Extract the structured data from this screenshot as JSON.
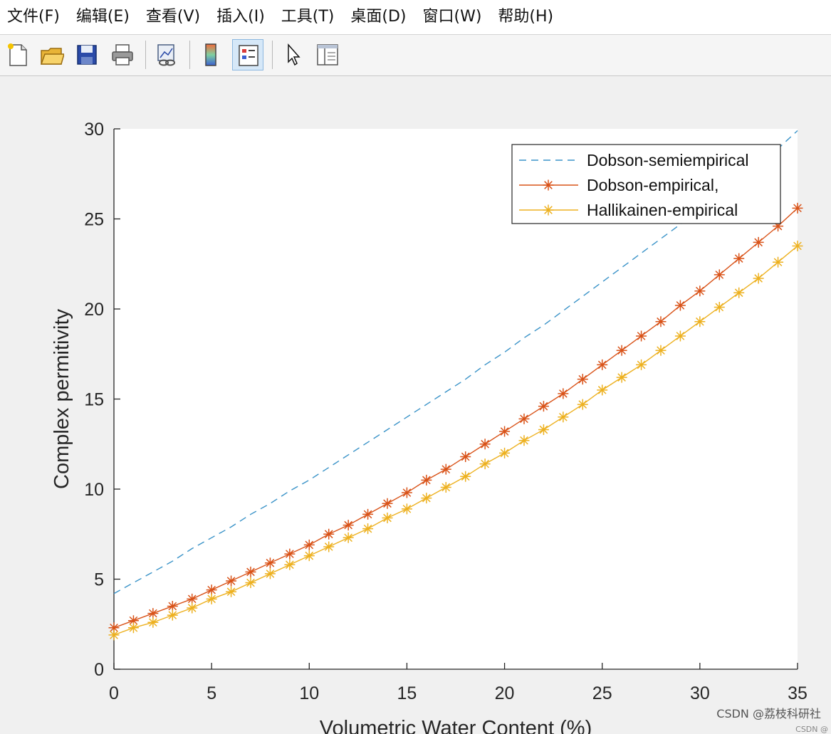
{
  "menu": [
    "文件(F)",
    "编辑(E)",
    "查看(V)",
    "插入(I)",
    "工具(T)",
    "桌面(D)",
    "窗口(W)",
    "帮助(H)"
  ],
  "toolbar": [
    {
      "name": "new-file-icon",
      "active": false
    },
    {
      "name": "open-folder-icon",
      "active": false
    },
    {
      "name": "save-icon",
      "active": false
    },
    {
      "name": "print-icon",
      "active": false
    },
    {
      "name": "link-plot-icon",
      "active": false
    },
    {
      "name": "colorbar-icon",
      "active": false
    },
    {
      "name": "legend-icon",
      "active": true
    },
    {
      "name": "edit-plot-arrow-icon",
      "active": false
    },
    {
      "name": "property-inspector-icon",
      "active": false
    }
  ],
  "watermark": "CSDN @荔枝科研社",
  "watermark_small": "CSDN @",
  "chart_data": {
    "type": "line",
    "xlabel": "Volumetric Water Content (%)",
    "ylabel": "Complex permitivity",
    "xlim": [
      0,
      35
    ],
    "ylim": [
      0,
      30
    ],
    "xticks": [
      0,
      5,
      10,
      15,
      20,
      25,
      30,
      35
    ],
    "yticks": [
      0,
      5,
      10,
      15,
      20,
      25,
      30
    ],
    "grid": false,
    "legend_position": "top-right",
    "x": [
      0,
      1,
      2,
      3,
      4,
      5,
      6,
      7,
      8,
      9,
      10,
      11,
      12,
      13,
      14,
      15,
      16,
      17,
      18,
      19,
      20,
      21,
      22,
      23,
      24,
      25,
      26,
      27,
      28,
      29,
      30,
      31,
      32,
      33,
      34,
      35
    ],
    "series": [
      {
        "name": "Dobson-semiempirical",
        "style": "dashed",
        "marker": "none",
        "color": "#3a93c8",
        "values": [
          4.2,
          4.8,
          5.4,
          6.0,
          6.7,
          7.3,
          7.9,
          8.6,
          9.2,
          9.9,
          10.5,
          11.2,
          11.9,
          12.6,
          13.3,
          14.0,
          14.7,
          15.4,
          16.1,
          16.9,
          17.6,
          18.4,
          19.1,
          19.9,
          20.7,
          21.5,
          22.3,
          23.1,
          23.9,
          24.7,
          25.5,
          26.3,
          27.2,
          28.0,
          28.9,
          29.9
        ]
      },
      {
        "name": "Dobson-empirical,",
        "style": "solid",
        "marker": "asterisk",
        "color": "#d95319",
        "values": [
          2.3,
          2.7,
          3.1,
          3.5,
          3.9,
          4.4,
          4.9,
          5.4,
          5.9,
          6.4,
          6.9,
          7.5,
          8.0,
          8.6,
          9.2,
          9.8,
          10.5,
          11.1,
          11.8,
          12.5,
          13.2,
          13.9,
          14.6,
          15.3,
          16.1,
          16.9,
          17.7,
          18.5,
          19.3,
          20.2,
          21.0,
          21.9,
          22.8,
          23.7,
          24.6,
          25.6
        ]
      },
      {
        "name": "Hallikainen-empirical",
        "style": "solid",
        "marker": "asterisk",
        "color": "#edb120",
        "values": [
          1.9,
          2.3,
          2.6,
          3.0,
          3.4,
          3.9,
          4.3,
          4.8,
          5.3,
          5.8,
          6.3,
          6.8,
          7.3,
          7.8,
          8.4,
          8.9,
          9.5,
          10.1,
          10.7,
          11.4,
          12.0,
          12.7,
          13.3,
          14.0,
          14.7,
          15.5,
          16.2,
          16.9,
          17.7,
          18.5,
          19.3,
          20.1,
          20.9,
          21.7,
          22.6,
          23.5
        ]
      }
    ]
  }
}
